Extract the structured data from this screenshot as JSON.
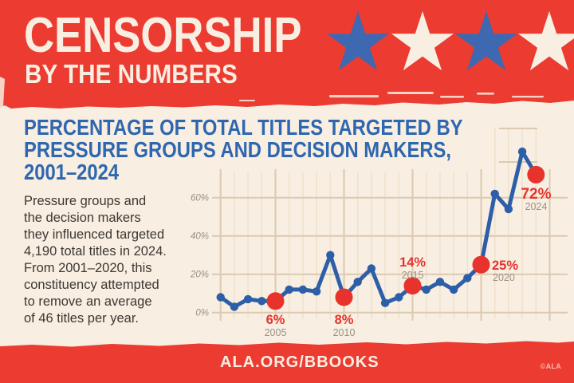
{
  "colors": {
    "band_red": "#ec3b31",
    "accent_red": "#e8332d",
    "cream": "#f8eee1",
    "title_blue": "#2e67af",
    "line_blue": "#2d5fa8",
    "star_blue": "#3e68b0",
    "grid_tan": "#dbc9b1",
    "grid_tan_light": "#eee0cb",
    "gray_label": "#9a9287",
    "body_text": "#3b3833"
  },
  "header": {
    "title": "CENSORSHIP",
    "subtitle": "BY THE NUMBERS",
    "stars": [
      "#3e68b0",
      "#f8eee1",
      "#3e68b0",
      "#f8eee1"
    ]
  },
  "main": {
    "title_lines": [
      "PERCENTAGE OF TOTAL TITLES TARGETED BY",
      "PRESSURE GROUPS AND DECISION MAKERS,",
      "2001–2024"
    ],
    "body_lines": [
      "Pressure groups and",
      "the decision makers",
      "they influenced targeted",
      "4,190 total titles in 2024.",
      "From 2001–2020, this",
      "constituency attempted",
      "to remove an average",
      "of 46 titles per year."
    ]
  },
  "chart_data": {
    "type": "line",
    "title": "Percentage of total titles targeted by pressure groups and decision makers, 2001–2024",
    "x": [
      2001,
      2002,
      2003,
      2004,
      2005,
      2006,
      2007,
      2008,
      2009,
      2010,
      2011,
      2012,
      2013,
      2014,
      2015,
      2016,
      2017,
      2018,
      2019,
      2020,
      2021,
      2022,
      2023,
      2024
    ],
    "values": [
      8,
      3,
      7,
      6,
      6,
      12,
      12,
      11,
      30,
      8,
      16,
      23,
      5,
      8,
      14,
      12,
      16,
      12,
      18,
      25,
      62,
      54,
      84,
      72
    ],
    "ylim": [
      0,
      100
    ],
    "yticks": [
      0,
      20,
      40,
      60
    ],
    "ytick_labels": [
      "0%",
      "20%",
      "40%",
      "60%"
    ],
    "grid": true,
    "legend": "none",
    "line_color": "#2d5fa8",
    "highlight_color": "#e8332d",
    "highlights": [
      {
        "year": 2005,
        "value": 6,
        "pct_label": "6%",
        "year_label": "2005"
      },
      {
        "year": 2010,
        "value": 8,
        "pct_label": "8%",
        "year_label": "2010"
      },
      {
        "year": 2015,
        "value": 14,
        "pct_label": "14%",
        "year_label": "2015"
      },
      {
        "year": 2020,
        "value": 25,
        "pct_label": "25%",
        "year_label": "2020"
      },
      {
        "year": 2024,
        "value": 72,
        "pct_label": "72%",
        "year_label": "2024"
      }
    ]
  },
  "footer": {
    "link": "ALA.ORG/BBOOKS",
    "credit": "©ALA"
  }
}
